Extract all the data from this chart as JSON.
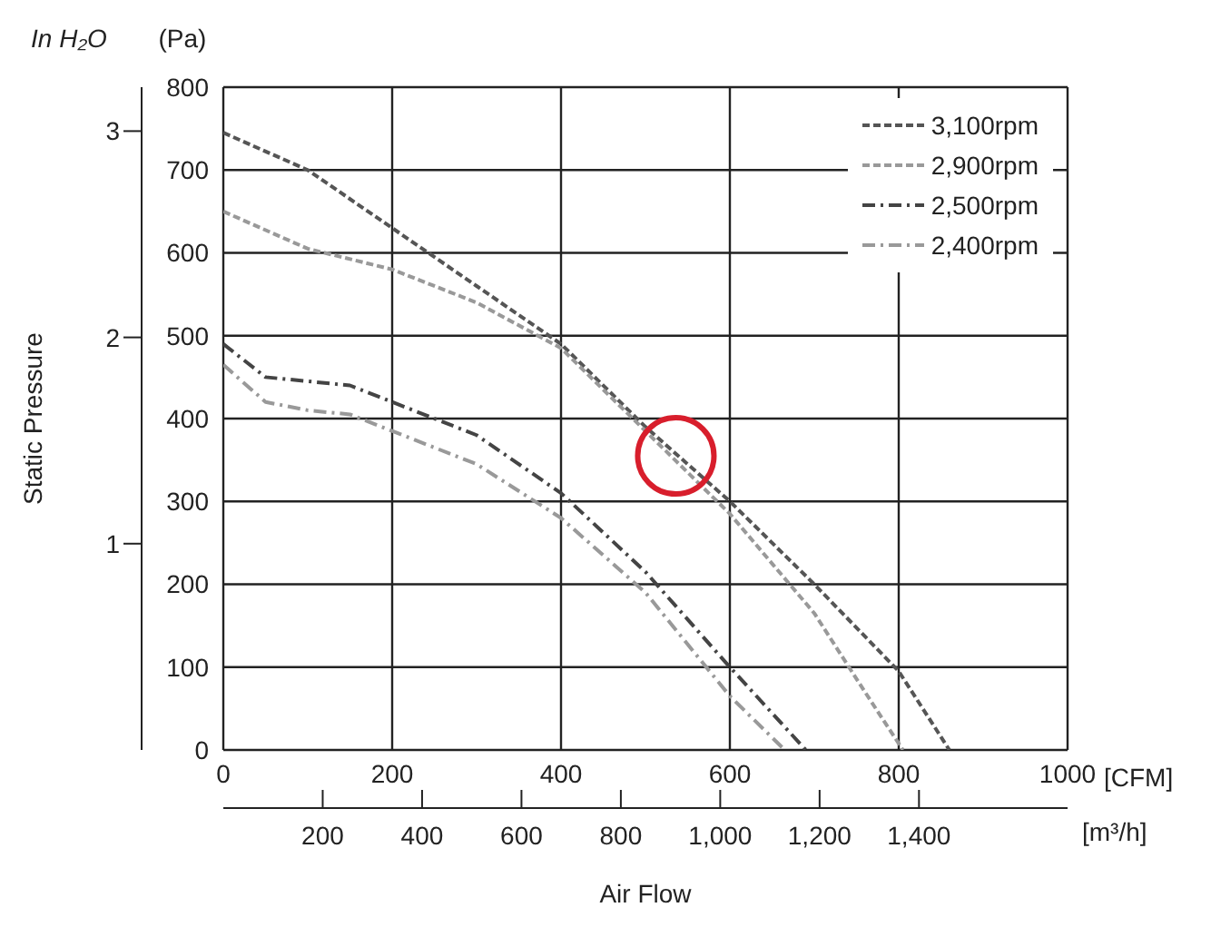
{
  "chart_data": {
    "type": "line",
    "xlabel": "Air Flow",
    "y2label": "Static Pressure",
    "x2label": "[m³/h]",
    "annotations": [
      "[CFM]",
      "(Pa)",
      "In H₂O"
    ],
    "xlim": [
      0,
      1000
    ],
    "xticks": [
      0,
      200,
      400,
      600,
      800,
      1000
    ],
    "ylim": [
      0,
      800
    ],
    "yticks": [
      0,
      100,
      200,
      300,
      400,
      500,
      600,
      700,
      800
    ],
    "y2lim": [
      0,
      3.213
    ],
    "y2ticks": [
      1,
      2,
      3
    ],
    "x2lim": [
      0,
      1699
    ],
    "x2ticks": [
      200,
      400,
      600,
      800,
      {
        "value": 1000,
        "label": "1,000"
      },
      {
        "value": 1200,
        "label": "1,200"
      },
      {
        "value": 1400,
        "label": "1,400"
      }
    ],
    "grid": true,
    "legend": "top right",
    "marker": "none",
    "series": [
      {
        "name": "3,100rpm",
        "color": "#555555",
        "line_style": "dashed",
        "x": [
          0,
          100,
          200,
          300,
          400,
          500,
          550,
          600,
          700,
          800,
          860
        ],
        "values": [
          745,
          700,
          630,
          560,
          490,
          390,
          345,
          300,
          200,
          95,
          0
        ]
      },
      {
        "name": "2,900rpm",
        "color": "#999999",
        "line_style": "dashed",
        "x": [
          0,
          100,
          200,
          300,
          400,
          500,
          600,
          700,
          760,
          805
        ],
        "values": [
          650,
          605,
          580,
          540,
          485,
          385,
          285,
          165,
          70,
          0
        ]
      },
      {
        "name": "2,500rpm",
        "color": "#444444",
        "line_style": "dashdot",
        "x": [
          0,
          50,
          100,
          150,
          200,
          300,
          400,
          500,
          600,
          690
        ],
        "values": [
          490,
          450,
          445,
          440,
          420,
          380,
          310,
          215,
          100,
          0
        ]
      },
      {
        "name": "2,400rpm",
        "color": "#999999",
        "line_style": "dashdot",
        "x": [
          0,
          50,
          100,
          150,
          200,
          300,
          400,
          500,
          600,
          665
        ],
        "values": [
          465,
          420,
          410,
          405,
          385,
          345,
          280,
          190,
          65,
          0
        ]
      },
      {
        "type": "scatter",
        "color": "#d81e2c",
        "marker": "circle",
        "x": [
          536
        ],
        "values": [
          355
        ]
      }
    ]
  }
}
